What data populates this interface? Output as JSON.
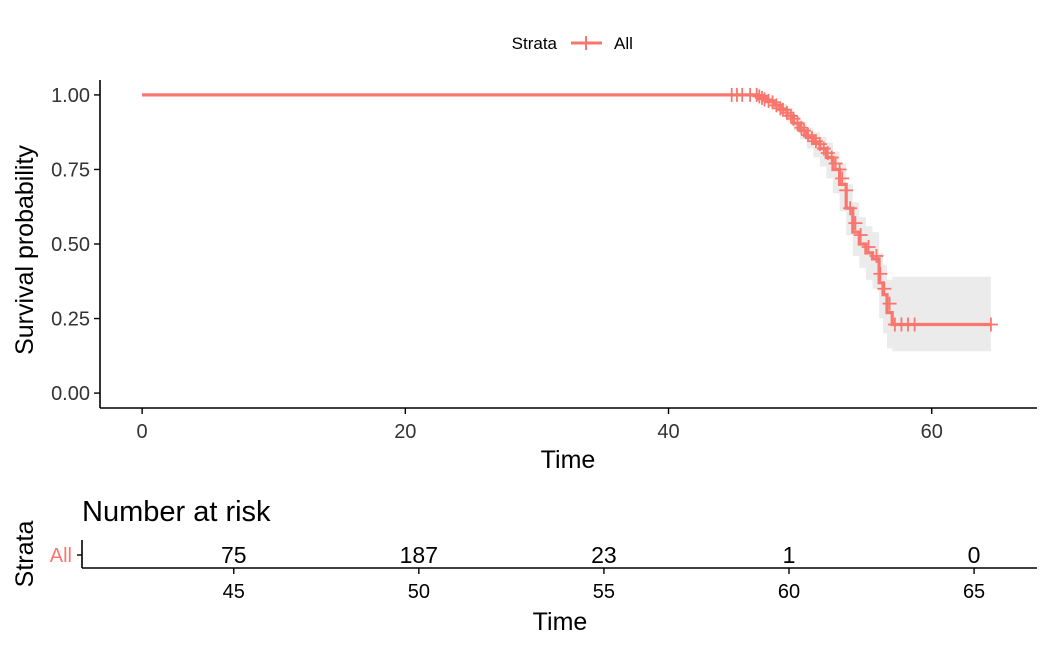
{
  "chart_data": [
    {
      "type": "line",
      "subtype": "kaplan-meier",
      "title": "",
      "xlabel": "Time",
      "ylabel": "Survival probability",
      "xlim": [
        -3.2,
        68
      ],
      "ylim": [
        -0.05,
        1.05
      ],
      "x_ticks": [
        0,
        20,
        40,
        60
      ],
      "x_tick_labels": [
        "0",
        "20",
        "40",
        "60"
      ],
      "y_ticks": [
        0,
        0.25,
        0.5,
        0.75,
        1.0
      ],
      "y_tick_labels": [
        "0.00",
        "0.25",
        "0.50",
        "0.75",
        "1.00"
      ],
      "grid": false,
      "legend": {
        "position": "top-center",
        "title": "Strata",
        "entries": [
          "All"
        ]
      },
      "colors": {
        "line": "#F8766D",
        "band": "#EBEBEB"
      },
      "series": [
        {
          "name": "All",
          "x": [
            0,
            46.8,
            47.5,
            48.0,
            48.5,
            49.0,
            49.5,
            50.0,
            50.5,
            51.0,
            51.5,
            52.0,
            52.5,
            53.0,
            53.5,
            54.0,
            54.5,
            55.0,
            55.5,
            56.0,
            56.3,
            56.6,
            57.0,
            64.5
          ],
          "y": [
            1.0,
            0.995,
            0.98,
            0.965,
            0.95,
            0.93,
            0.905,
            0.88,
            0.86,
            0.84,
            0.82,
            0.79,
            0.75,
            0.7,
            0.62,
            0.54,
            0.5,
            0.47,
            0.45,
            0.37,
            0.33,
            0.27,
            0.23,
            0.23
          ],
          "ci_lower": [
            1.0,
            0.99,
            0.97,
            0.95,
            0.93,
            0.91,
            0.88,
            0.85,
            0.82,
            0.79,
            0.76,
            0.72,
            0.67,
            0.61,
            0.53,
            0.46,
            0.42,
            0.38,
            0.35,
            0.25,
            0.2,
            0.15,
            0.14,
            0.14
          ],
          "ci_upper": [
            1.0,
            1.0,
            0.99,
            0.98,
            0.97,
            0.955,
            0.93,
            0.91,
            0.89,
            0.875,
            0.86,
            0.84,
            0.81,
            0.77,
            0.7,
            0.64,
            0.59,
            0.56,
            0.54,
            0.47,
            0.43,
            0.38,
            0.39,
            0.39
          ],
          "censor_x": [
            44.8,
            45.2,
            45.6,
            46.2,
            46.7,
            46.9,
            47.1,
            47.3,
            47.6,
            47.9,
            48.2,
            48.5,
            48.7,
            49.0,
            49.3,
            49.5,
            49.8,
            50.1,
            50.3,
            50.6,
            50.9,
            51.2,
            51.5,
            51.8,
            52.1,
            52.4,
            52.7,
            53.0,
            53.2,
            53.5,
            53.8,
            54.2,
            54.6,
            55.2,
            55.8,
            56.1,
            56.4,
            56.8,
            57.2,
            57.7,
            58.2,
            58.7,
            64.5
          ],
          "censor_y": [
            1.0,
            1.0,
            1.0,
            1.0,
            1.0,
            0.995,
            0.99,
            0.985,
            0.98,
            0.975,
            0.965,
            0.955,
            0.95,
            0.94,
            0.93,
            0.92,
            0.905,
            0.89,
            0.88,
            0.865,
            0.855,
            0.845,
            0.835,
            0.82,
            0.805,
            0.79,
            0.77,
            0.75,
            0.72,
            0.68,
            0.62,
            0.57,
            0.53,
            0.49,
            0.46,
            0.4,
            0.35,
            0.3,
            0.23,
            0.23,
            0.23,
            0.23,
            0.23
          ]
        }
      ]
    },
    {
      "type": "table",
      "title": "Number at risk",
      "xlabel": "Time",
      "ylabel": "Strata",
      "xlim": [
        40.9,
        66.7
      ],
      "x_ticks": [
        45,
        50,
        55,
        60,
        65
      ],
      "x_tick_labels": [
        "45",
        "50",
        "55",
        "60",
        "65"
      ],
      "rows": [
        {
          "name": "All",
          "color": "#F8766D",
          "values": [
            "75",
            "187",
            "23",
            "1",
            "0"
          ]
        }
      ]
    }
  ]
}
